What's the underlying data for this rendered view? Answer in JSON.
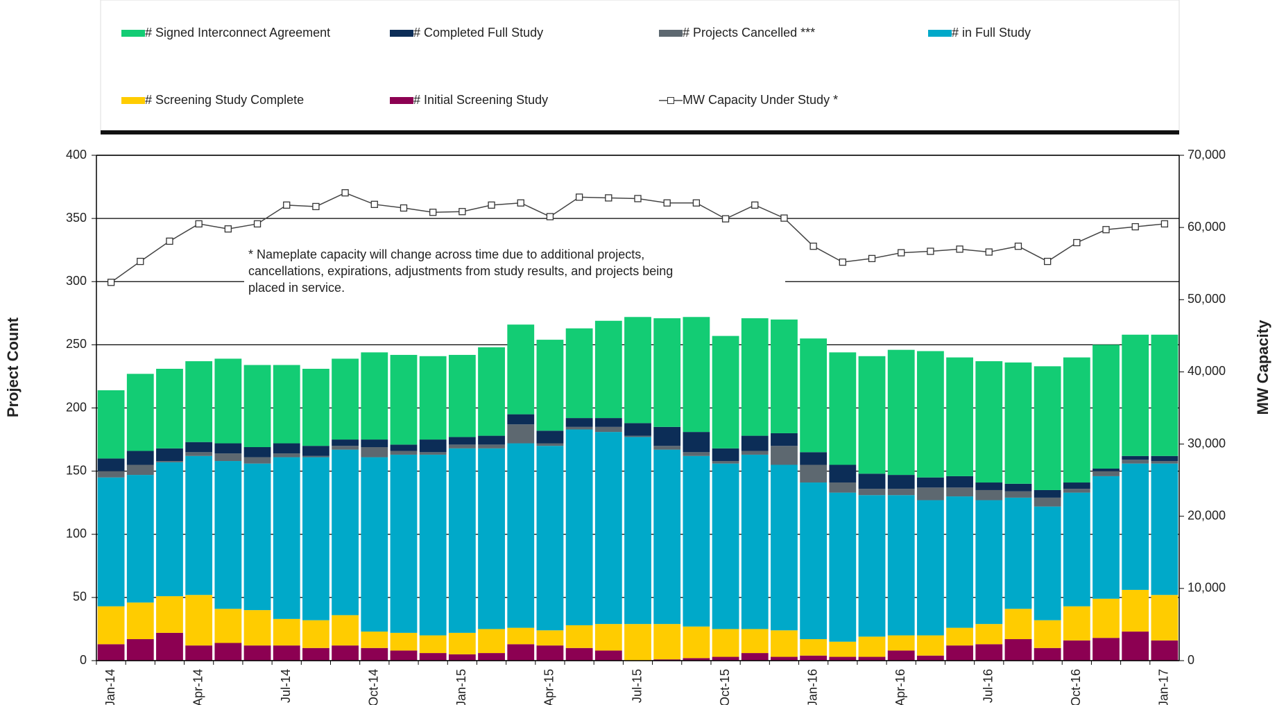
{
  "chart_data": {
    "type": "bar",
    "y_label": "Project Count",
    "y2_label": "MW Capacity",
    "annotation": [
      "* Nameplate capacity will change across time due to additional projects,",
      "cancellations, expirations, adjustments from study results, and projects being",
      "placed in service."
    ],
    "categories": [
      "Jan-14",
      null,
      null,
      "Apr-14",
      null,
      null,
      "Jul-14",
      null,
      null,
      "Oct-14",
      null,
      null,
      "Jan-15",
      null,
      null,
      "Apr-15",
      null,
      null,
      "Jul-15",
      null,
      null,
      "Oct-15",
      null,
      null,
      "Jan-16",
      null,
      null,
      "Apr-16",
      null,
      null,
      "Jul-16",
      null,
      null,
      "Oct-16",
      null,
      null,
      "Jan-17"
    ],
    "ylim": [
      0,
      400
    ],
    "yticks": [
      0,
      50,
      100,
      150,
      200,
      250,
      300,
      350,
      400
    ],
    "y2lim": [
      0,
      70000
    ],
    "y2ticks": [
      0,
      {
        "value": 10000,
        "label": "10,000"
      },
      {
        "value": 20000,
        "label": "20,000"
      },
      {
        "value": 30000,
        "label": "30,000"
      },
      {
        "value": 40000,
        "label": "40,000"
      },
      {
        "value": 50000,
        "label": "50,000"
      },
      {
        "value": 60000,
        "label": "60,000"
      },
      {
        "value": 70000,
        "label": "70,000"
      }
    ],
    "grid": true,
    "legend": "top",
    "series": [
      {
        "name": "# Signed Interconnect Agreement",
        "color": "#13cc74",
        "values": [
          54,
          61,
          63,
          64,
          67,
          65,
          62,
          61,
          64,
          69,
          71,
          66,
          65,
          70,
          71,
          72,
          71,
          77,
          84,
          86,
          91,
          89,
          93,
          90,
          90,
          89,
          93,
          99,
          100,
          94,
          96,
          96,
          98,
          99,
          98,
          96,
          96
        ]
      },
      {
        "name": "# Completed Full Study",
        "color": "#0c2d57",
        "values": [
          10,
          11,
          10,
          8,
          8,
          8,
          8,
          8,
          5,
          6,
          5,
          10,
          6,
          7,
          8,
          10,
          7,
          7,
          10,
          15,
          16,
          10,
          12,
          10,
          10,
          14,
          12,
          11,
          8,
          9,
          6,
          6,
          6,
          5,
          2,
          3,
          4
        ]
      },
      {
        "name": "# Projects Cancelled ***",
        "color": "#5d6870",
        "values": [
          5,
          8,
          1,
          3,
          6,
          5,
          3,
          1,
          3,
          8,
          3,
          2,
          3,
          3,
          15,
          2,
          2,
          4,
          1,
          3,
          3,
          2,
          3,
          15,
          14,
          8,
          5,
          5,
          10,
          7,
          8,
          5,
          7,
          3,
          4,
          3,
          2
        ]
      },
      {
        "name": "# in Full Study",
        "color": "#00a9c9",
        "values": [
          102,
          101,
          106,
          110,
          117,
          116,
          128,
          129,
          131,
          138,
          141,
          143,
          146,
          143,
          146,
          146,
          155,
          152,
          148,
          138,
          135,
          131,
          138,
          131,
          124,
          118,
          112,
          111,
          107,
          104,
          98,
          88,
          90,
          90,
          97,
          100,
          104
        ]
      },
      {
        "name": "# Screening Study Complete",
        "color": "#ffcc00",
        "values": [
          30,
          29,
          29,
          40,
          27,
          28,
          21,
          22,
          24,
          13,
          14,
          14,
          17,
          19,
          13,
          12,
          18,
          21,
          29,
          28,
          25,
          22,
          19,
          21,
          13,
          12,
          16,
          12,
          16,
          14,
          16,
          24,
          22,
          27,
          31,
          33,
          36
        ]
      },
      {
        "name": "# Initial Screening Study",
        "color": "#8c0052",
        "values": [
          13,
          17,
          22,
          12,
          14,
          12,
          12,
          10,
          12,
          10,
          8,
          6,
          5,
          6,
          13,
          12,
          10,
          8,
          0,
          1,
          2,
          3,
          6,
          3,
          4,
          3,
          3,
          8,
          4,
          12,
          13,
          17,
          10,
          16,
          18,
          23,
          16
        ]
      },
      {
        "name": "MW Capacity Under Study *",
        "type": "line",
        "axis": "y2",
        "color": "#444444",
        "values": [
          52400,
          55300,
          58100,
          60500,
          59800,
          60500,
          63100,
          62900,
          64800,
          63200,
          62700,
          62100,
          62200,
          63100,
          63400,
          61500,
          64200,
          64100,
          64000,
          63400,
          63400,
          61200,
          63100,
          61300,
          57400,
          55200,
          55700,
          56500,
          56700,
          57000,
          56600,
          57400,
          55300,
          57900,
          59700,
          60100,
          60500
        ]
      }
    ]
  }
}
